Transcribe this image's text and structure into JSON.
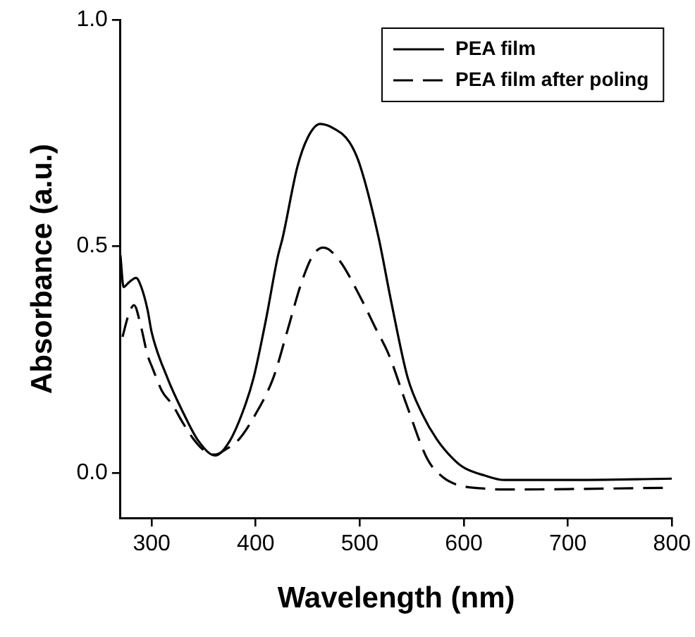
{
  "chart_data": {
    "type": "line",
    "xlabel": "Wavelength (nm)",
    "ylabel": "Absorbance (a.u.)",
    "xlim": [
      270,
      800
    ],
    "xticks": [
      300,
      400,
      500,
      600,
      700,
      800
    ],
    "ylim": [
      -0.1,
      1.0
    ],
    "yticks": [
      {
        "value": 0,
        "label": "0.0"
      },
      {
        "value": 0.5,
        "label": "0.5"
      },
      {
        "value": 1,
        "label": "1.0"
      }
    ],
    "grid": false,
    "legend": "top right",
    "marker": "none",
    "series": [
      {
        "name": "PEA film",
        "color": "#000000",
        "line_style": "solid",
        "x": [
          270,
          273,
          278,
          285,
          290,
          296,
          300,
          315,
          333,
          345,
          361,
          375,
          390,
          398,
          410,
          421,
          426,
          440,
          450,
          462,
          475,
          490,
          500,
          518,
          530,
          546,
          560,
          574,
          590,
          601,
          620,
          639,
          700,
          800
        ],
        "values": [
          0.48,
          0.41,
          0.42,
          0.43,
          0.41,
          0.36,
          0.31,
          0.21,
          0.12,
          0.07,
          0.038,
          0.07,
          0.15,
          0.21,
          0.34,
          0.475,
          0.52,
          0.675,
          0.74,
          0.77,
          0.76,
          0.73,
          0.68,
          0.52,
          0.38,
          0.21,
          0.13,
          0.074,
          0.03,
          0.01,
          -0.006,
          -0.016,
          -0.016,
          -0.013
        ]
      },
      {
        "name": "PEA film after poling",
        "color": "#000000",
        "line_style": "dashed",
        "x": [
          272,
          278,
          283,
          290,
          296,
          301,
          310,
          320,
          330,
          340,
          350,
          361,
          370,
          384,
          400,
          417,
          430,
          444,
          455,
          465,
          480,
          500,
          515,
          528,
          545,
          565,
          580,
          593,
          620,
          650,
          700,
          800
        ],
        "values": [
          0.3,
          0.35,
          0.37,
          0.32,
          0.26,
          0.23,
          0.18,
          0.15,
          0.11,
          0.075,
          0.05,
          0.04,
          0.05,
          0.074,
          0.13,
          0.21,
          0.31,
          0.42,
          0.48,
          0.497,
          0.47,
          0.39,
          0.32,
          0.26,
          0.15,
          0.03,
          -0.01,
          -0.026,
          -0.035,
          -0.037,
          -0.036,
          -0.033
        ]
      }
    ]
  }
}
